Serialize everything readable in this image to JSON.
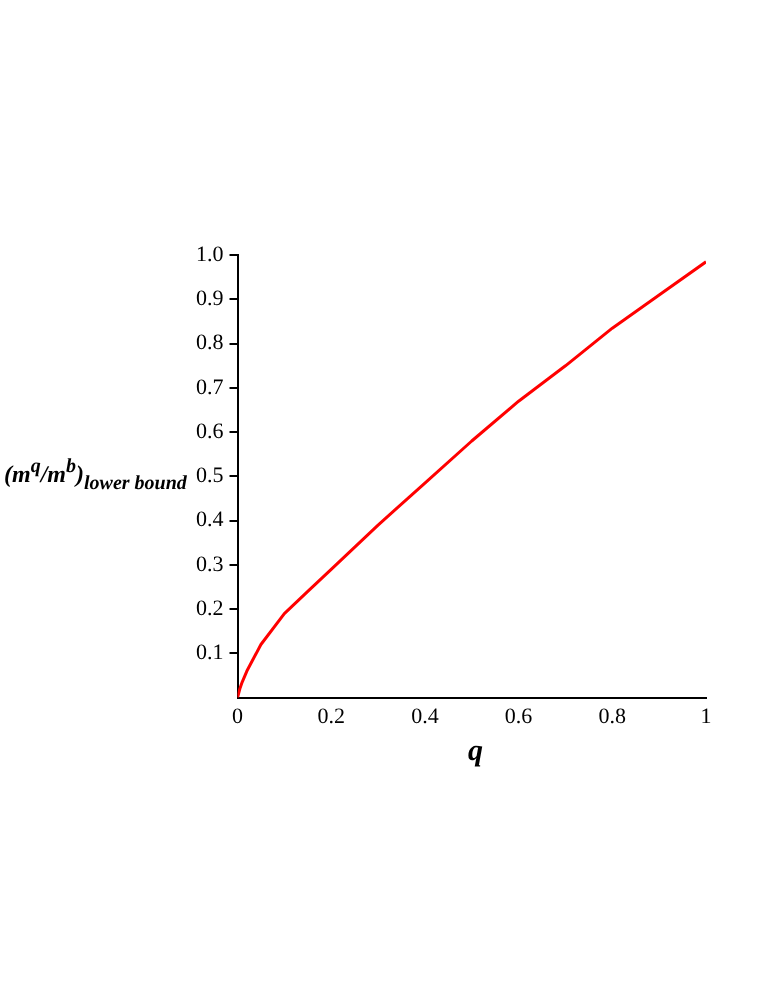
{
  "chart_data": {
    "type": "line",
    "xlabel": "q",
    "ylabel": "(m$^{q}$/m$^{b}$)$_{lower bound}$",
    "x": [
      0,
      0.005,
      0.01,
      0.02,
      0.05,
      0.1,
      0.15,
      0.2,
      0.3,
      0.4,
      0.5,
      0.6,
      0.7,
      0.8,
      0.9,
      1
    ],
    "series": [
      {
        "color": "#ff0000",
        "values": [
          0,
          0.02,
          0.035,
          0.06,
          0.12,
          0.19,
          0.24,
          0.29,
          0.39,
          0.485,
          0.58,
          0.67,
          0.75,
          0.835,
          0.91,
          0.985
        ]
      }
    ],
    "xlim": [
      0,
      1
    ],
    "ylim": [
      0,
      1
    ],
    "xticks": [
      0,
      0.2,
      0.4,
      0.6,
      0.8,
      1
    ],
    "yticks": [
      0.1,
      0.2,
      0.3,
      0.4,
      0.5,
      0.6,
      0.7,
      0.8,
      0.9,
      {
        "value": 1,
        "label": "1.0"
      }
    ],
    "grid": false,
    "legend": false,
    "marker": "none",
    "line_style": "solid"
  }
}
